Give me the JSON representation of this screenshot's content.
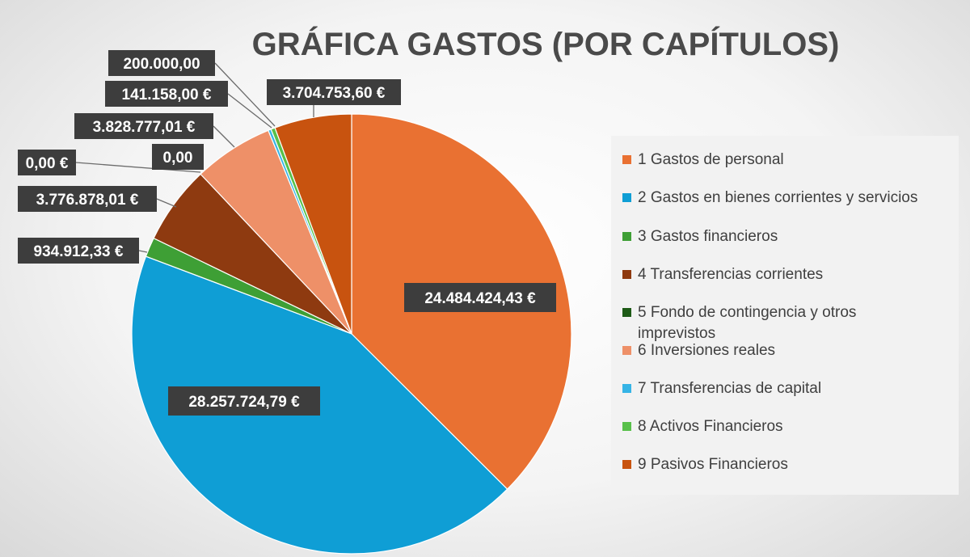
{
  "chart_data": {
    "type": "pie",
    "title": "GRÁFICA GASTOS (POR CAPÍTULOS)",
    "legend_position": "right",
    "series": [
      {
        "name": "1 Gastos de personal",
        "value": 24484424.43,
        "label": "24.484.424,43 €",
        "color": "#E97132"
      },
      {
        "name": "2 Gastos en bienes corrientes y servicios",
        "value": 28257724.79,
        "label": "28.257.724,79 €",
        "color": "#0F9ED5"
      },
      {
        "name": "3 Gastos financieros",
        "value": 934912.33,
        "label": "934.912,33 €",
        "color": "#3E9F35"
      },
      {
        "name": "4 Transferencias corrientes",
        "value": 3776878.01,
        "label": "3.776.878,01 €",
        "color": "#8E3A10"
      },
      {
        "name": "5 Fondo de contingencia y otros imprevistos",
        "value": 0,
        "label": "0,00 €",
        "color": "#1E5B17"
      },
      {
        "name": "6 Inversiones reales",
        "value": 3828777.01,
        "label": "3.828.777,01 €",
        "color": "#EE9068"
      },
      {
        "name": "7 Transferencias de capital",
        "value": 141158.0,
        "label": "141.158,00 €",
        "color": "#36B4E6"
      },
      {
        "name": "8 Activos Financieros",
        "value": 200000.0,
        "label": "200.000,00",
        "color": "#58C04A"
      },
      {
        "name": "9 Pasivos Financieros",
        "value": 3704753.6,
        "label": "3.704.753,60 €",
        "color": "#C8530F"
      }
    ],
    "extra_labels": [
      "0,00"
    ]
  }
}
